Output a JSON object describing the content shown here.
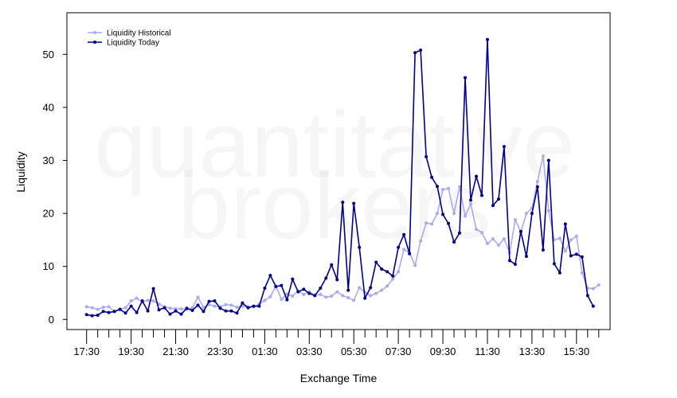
{
  "chart_data": {
    "type": "line",
    "title": "",
    "xlabel": "Exchange Time",
    "ylabel": "Liquidity",
    "x_tick_labels": [
      "17:30",
      "19:30",
      "21:30",
      "23:30",
      "01:30",
      "03:30",
      "05:30",
      "07:30",
      "09:30",
      "11:30",
      "13:30",
      "15:30"
    ],
    "y_ticks": [
      0,
      10,
      20,
      30,
      40,
      50
    ],
    "ylim": [
      -2,
      58
    ],
    "grid": false,
    "legend_position": "top-left",
    "watermark": [
      "quantitative",
      "brokers"
    ],
    "series": [
      {
        "name": "Liquidity Historical",
        "color": "#aaaaee",
        "values": [
          2.4,
          2.2,
          1.9,
          2.3,
          2.4,
          1.5,
          1.9,
          2.2,
          3.5,
          4.0,
          3.3,
          3.6,
          3.5,
          2.9,
          2.4,
          2.1,
          2.0,
          2.0,
          1.9,
          2.2,
          4.2,
          2.3,
          2.8,
          2.5,
          2.4,
          2.8,
          2.7,
          2.3,
          2.5,
          2.4,
          2.4,
          2.9,
          3.6,
          4.3,
          6.3,
          3.8,
          4.8,
          4.4,
          5.4,
          4.7,
          5.2,
          4.6,
          4.7,
          4.2,
          4.4,
          5.2,
          4.5,
          4.1,
          3.6,
          6.0,
          5.1,
          4.5,
          4.9,
          5.5,
          6.3,
          7.6,
          9.0,
          13.2,
          12.6,
          10.2,
          14.8,
          18.2,
          18.0,
          20.0,
          24.5,
          24.7,
          20.0,
          25.0,
          19.5,
          21.8,
          17.0,
          16.4,
          14.3,
          15.2,
          14.0,
          15.2,
          12.6,
          18.8,
          16.5,
          20.0,
          21.0,
          26.0,
          30.8,
          20.5,
          15.0,
          15.3,
          12.9,
          15.0,
          15.7,
          8.8,
          5.9,
          5.8,
          6.5
        ]
      },
      {
        "name": "Liquidity Today",
        "color": "#00008b",
        "values": [
          0.9,
          0.7,
          0.8,
          1.5,
          1.3,
          1.5,
          1.9,
          1.2,
          2.5,
          1.3,
          3.5,
          1.6,
          5.8,
          1.8,
          2.2,
          1.0,
          1.6,
          1.0,
          2.1,
          1.7,
          2.7,
          1.5,
          3.4,
          3.5,
          2.1,
          1.6,
          1.6,
          1.2,
          3.1,
          2.2,
          2.5,
          2.5,
          5.9,
          8.3,
          6.2,
          6.4,
          3.7,
          7.6,
          5.2,
          5.7,
          4.9,
          4.5,
          5.9,
          7.8,
          10.3,
          7.5,
          22.1,
          5.5,
          21.9,
          13.6,
          4.0,
          6.0,
          10.8,
          9.5,
          9.0,
          8.2,
          13.6,
          16.0,
          12.4,
          50.3,
          50.8,
          30.7,
          26.8,
          25.1,
          19.8,
          18.1,
          14.6,
          16.3,
          45.6,
          22.5,
          27.0,
          23.4,
          52.8,
          21.5,
          22.7,
          32.6,
          11.1,
          10.4,
          16.6,
          11.9,
          20.0,
          25.0,
          13.1,
          30.0,
          10.5,
          8.8,
          18.0,
          12.0,
          12.3,
          11.8,
          4.5,
          2.5
        ]
      }
    ]
  }
}
